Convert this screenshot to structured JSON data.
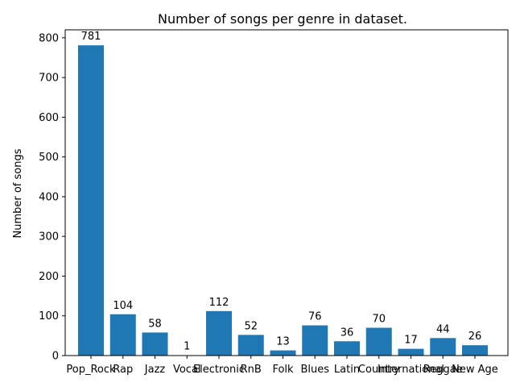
{
  "chart_data": {
    "type": "bar",
    "title": "Number of songs per genre in dataset.",
    "xlabel": "",
    "ylabel": "Number of songs",
    "categories": [
      "Pop_Rock",
      "Rap",
      "Jazz",
      "Vocal",
      "Electronic",
      "RnB",
      "Folk",
      "Blues",
      "Latin",
      "Country",
      "International",
      "Reggae",
      "New Age"
    ],
    "values": [
      781,
      104,
      58,
      1,
      112,
      52,
      13,
      76,
      36,
      70,
      17,
      44,
      26
    ],
    "data_labels": [
      "781",
      "104",
      "58",
      "1",
      "112",
      "52",
      "13",
      "76",
      "36",
      "70",
      "17",
      "44",
      "26"
    ],
    "ylim": [
      0,
      820
    ],
    "yticks": [
      0,
      100,
      200,
      300,
      400,
      500,
      600,
      700,
      800
    ],
    "ytick_labels": [
      "0",
      "100",
      "200",
      "300",
      "400",
      "500",
      "600",
      "700",
      "800"
    ],
    "grid": false,
    "bar_color": "#1f77b4"
  }
}
